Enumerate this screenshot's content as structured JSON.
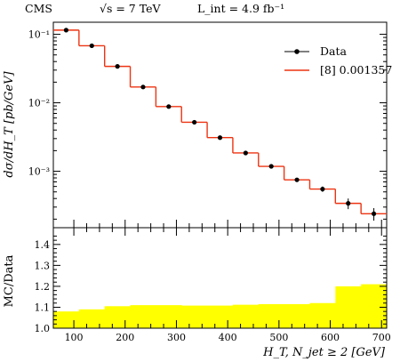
{
  "header": {
    "experiment": "CMS",
    "energy_label": "√s = 7 TeV",
    "lumi_label": "L_int = 4.9 fb⁻¹"
  },
  "chart_data": [
    {
      "type": "line",
      "panel": "main",
      "ylabel": "dσ/dH_T [pb/GeV]",
      "yscale": "log",
      "ylim": [
        0.00015,
        0.15
      ],
      "xlim": [
        60,
        710
      ],
      "y_ticks": [
        "10⁻³",
        "10⁻²",
        "10⁻¹"
      ],
      "y_tick_values": [
        0.001,
        0.01,
        0.1
      ],
      "legend": "top-right",
      "series": [
        {
          "name": "Data",
          "style": "points-with-error-bars",
          "color": "#000000",
          "x": [
            85,
            135,
            185,
            235,
            285,
            335,
            385,
            435,
            485,
            535,
            585,
            635,
            685
          ],
          "y": [
            0.115,
            0.068,
            0.034,
            0.017,
            0.0088,
            0.0052,
            0.0031,
            0.00185,
            0.00118,
            0.00075,
            0.00055,
            0.00034,
            0.00024
          ],
          "yerr": [
            0.002,
            0.0015,
            0.0008,
            0.0004,
            0.0002,
            0.00012,
            8e-05,
            6e-05,
            5e-05,
            4e-05,
            5e-05,
            6e-05,
            5e-05
          ]
        },
        {
          "name": "[8] 0.001357",
          "style": "step",
          "color": "#ee3311",
          "bin_edges": [
            60,
            110,
            160,
            210,
            260,
            310,
            360,
            410,
            460,
            510,
            560,
            610,
            660,
            710
          ],
          "values": [
            0.115,
            0.068,
            0.034,
            0.017,
            0.0088,
            0.0052,
            0.0031,
            0.00185,
            0.00118,
            0.00075,
            0.00055,
            0.00034,
            0.00024
          ]
        }
      ]
    },
    {
      "type": "area",
      "panel": "ratio",
      "xlabel": "H_T, N_jet ≥ 2 [GeV]",
      "ylabel": "MC/Data",
      "ylim": [
        1.0,
        1.48
      ],
      "xlim": [
        60,
        710
      ],
      "x_ticks": [
        "100",
        "200",
        "300",
        "400",
        "500",
        "600",
        "700"
      ],
      "x_tick_values": [
        100,
        200,
        300,
        400,
        500,
        600,
        700
      ],
      "y_ticks": [
        "1.0",
        "1.1",
        "1.2",
        "1.3",
        "1.4"
      ],
      "y_tick_values": [
        1.0,
        1.1,
        1.2,
        1.3,
        1.4
      ],
      "fill_color": "#ffff00",
      "bin_edges": [
        60,
        110,
        160,
        210,
        260,
        310,
        360,
        410,
        460,
        510,
        560,
        610,
        660,
        710
      ],
      "values": [
        1.08,
        1.09,
        1.105,
        1.11,
        1.11,
        1.108,
        1.108,
        1.112,
        1.115,
        1.115,
        1.12,
        1.2,
        1.21
      ]
    }
  ]
}
